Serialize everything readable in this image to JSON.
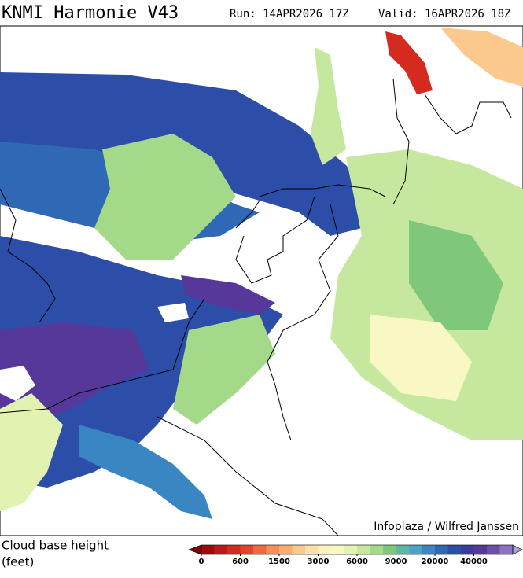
{
  "header": {
    "title": "KNMI Harmonie V43",
    "run": "Run: 14APR2026 17Z",
    "valid": "Valid: 16APR2026 18Z"
  },
  "credit": "Infoplaza / Wilfred Janssen",
  "legend": {
    "label_line1": "Cloud base height",
    "label_line2": "(feet)",
    "ticks": [
      0,
      600,
      1500,
      3000,
      6000,
      9000,
      20000,
      40000
    ],
    "colors": [
      "#7f0000",
      "#9e0a0a",
      "#bb1a1a",
      "#d42a20",
      "#e4432a",
      "#ee6a3c",
      "#f58e52",
      "#f8ad6c",
      "#fbc98c",
      "#fde0a8",
      "#fef2be",
      "#f7f8c4",
      "#e2f2b0",
      "#c6e79e",
      "#a4d98a",
      "#7fc77a",
      "#5cb7a4",
      "#4aa3c8",
      "#3a86c2",
      "#2f69b5",
      "#2c4ea8",
      "#3b3a9e",
      "#55389a",
      "#6e4ea8",
      "#8a72c0",
      "#a9a0d4"
    ]
  }
}
